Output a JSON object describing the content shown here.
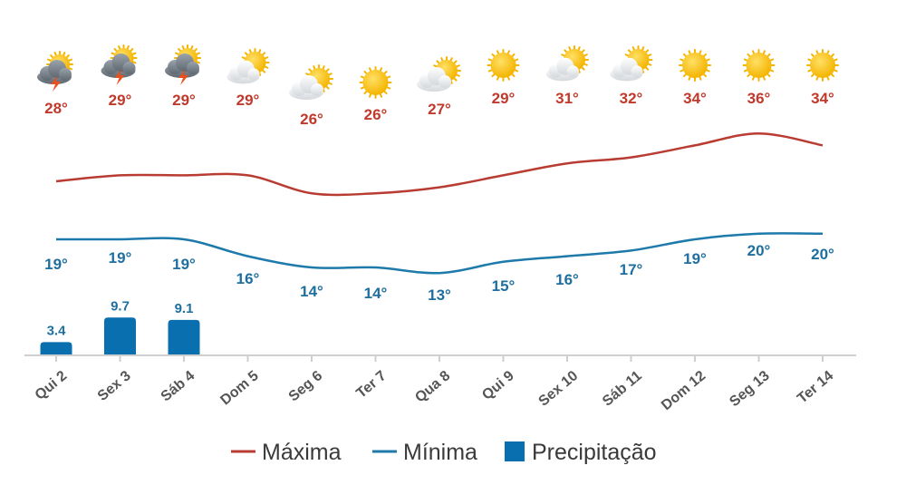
{
  "chart_data": {
    "type": "line",
    "categories": [
      "Qui 2",
      "Sex 3",
      "Sáb 4",
      "Dom 5",
      "Seg 6",
      "Ter 7",
      "Qua 8",
      "Qui 9",
      "Sex 10",
      "Sáb 11",
      "Dom 12",
      "Seg 13",
      "Ter 14"
    ],
    "icons": [
      "thunderstorm-icon",
      "thunderstorm-icon",
      "thunderstorm-icon",
      "sun-cloud-icon",
      "cloud-sun-icon",
      "sun-icon",
      "cloud-sun-icon",
      "sun-icon",
      "sun-cloud-icon",
      "sun-cloud-icon",
      "sun-icon",
      "sun-icon",
      "sun-icon"
    ],
    "series": [
      {
        "name": "Máxima",
        "color": "#b83c32",
        "values": [
          28,
          29,
          29,
          29,
          26,
          26,
          27,
          29,
          31,
          32,
          34,
          36,
          34
        ],
        "labels": [
          "28°",
          "29°",
          "29°",
          "29°",
          "26°",
          "26°",
          "27°",
          "29°",
          "31°",
          "32°",
          "34°",
          "36°",
          "34°"
        ]
      },
      {
        "name": "Mínima",
        "color": "#1e7aab",
        "values": [
          19,
          19,
          19,
          16,
          14,
          14,
          13,
          15,
          16,
          17,
          19,
          20,
          20
        ],
        "labels": [
          "19°",
          "19°",
          "19°",
          "16°",
          "14°",
          "14°",
          "13°",
          "15°",
          "16°",
          "17°",
          "19°",
          "20°",
          "20°"
        ]
      },
      {
        "name": "Precipitação",
        "type": "bar",
        "color": "#0a6fae",
        "values": [
          3.4,
          9.7,
          9.1,
          null,
          null,
          null,
          null,
          null,
          null,
          null,
          null,
          null,
          null
        ],
        "labels": [
          "3.4",
          "9.7",
          "9.1",
          "",
          "",
          "",
          "",
          "",
          "",
          "",
          "",
          "",
          ""
        ]
      }
    ],
    "legend": {
      "position": "bottom",
      "items": [
        "Máxima",
        "Mínima",
        "Precipitação"
      ]
    }
  }
}
